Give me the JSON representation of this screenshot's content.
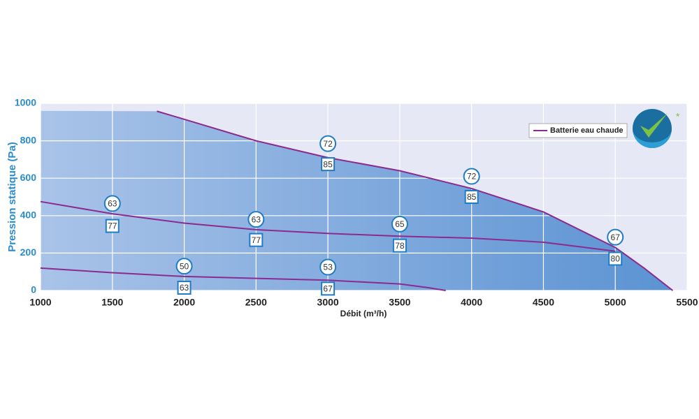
{
  "chart_data": {
    "type": "line",
    "xlabel": "Débit (m³/h)",
    "ylabel": "Pression statique (Pa)",
    "xlim": [
      1000,
      5500
    ],
    "ylim": [
      0,
      1000
    ],
    "xticks": [
      1000,
      1500,
      2000,
      2500,
      3000,
      3500,
      4000,
      4500,
      5000,
      5500
    ],
    "yticks": [
      0,
      200,
      400,
      600,
      800,
      1000
    ],
    "grid": true,
    "legend": "upper right",
    "area": {
      "color": "#5b93d3",
      "x": [
        1000,
        1810,
        2000,
        2500,
        3000,
        3500,
        4000,
        4500,
        5000,
        5200,
        5400
      ],
      "values": [
        960,
        958,
        915,
        800,
        710,
        640,
        545,
        420,
        230,
        120,
        0
      ]
    },
    "series": [
      {
        "name": "Batterie eau chaude",
        "color": "#8b2a8f",
        "curves": [
          {
            "x": [
              1810,
              2000,
              2500,
              3000,
              3500,
              4000,
              4500,
              5000,
              5200,
              5400
            ],
            "values": [
              958,
              915,
              800,
              710,
              640,
              545,
              420,
              230,
              120,
              0
            ]
          },
          {
            "x": [
              1000,
              1500,
              2000,
              2500,
              3000,
              3500,
              4000,
              4500,
              5000
            ],
            "values": [
              475,
              410,
              360,
              325,
              305,
              290,
              280,
              258,
              210
            ]
          },
          {
            "x": [
              1000,
              1500,
              2000,
              2500,
              3000,
              3500,
              3700,
              3820
            ],
            "values": [
              120,
              95,
              75,
              65,
              55,
              35,
              15,
              0
            ]
          }
        ]
      }
    ],
    "markers": [
      {
        "shape": "circle",
        "x": 1500,
        "y": 465,
        "label": 63
      },
      {
        "shape": "square",
        "x": 1500,
        "y": 345,
        "label": 77
      },
      {
        "shape": "circle",
        "x": 2500,
        "y": 380,
        "label": 63
      },
      {
        "shape": "square",
        "x": 2500,
        "y": 270,
        "label": 77
      },
      {
        "shape": "circle",
        "x": 3000,
        "y": 785,
        "label": 72
      },
      {
        "shape": "square",
        "x": 3000,
        "y": 675,
        "label": 85
      },
      {
        "shape": "circle",
        "x": 4000,
        "y": 610,
        "label": 72
      },
      {
        "shape": "square",
        "x": 4000,
        "y": 500,
        "label": 85
      },
      {
        "shape": "circle",
        "x": 3500,
        "y": 355,
        "label": 65
      },
      {
        "shape": "square",
        "x": 3500,
        "y": 240,
        "label": 78
      },
      {
        "shape": "circle",
        "x": 5000,
        "y": 285,
        "label": 67
      },
      {
        "shape": "square",
        "x": 5000,
        "y": 170,
        "label": 80
      },
      {
        "shape": "circle",
        "x": 2000,
        "y": 130,
        "label": 50
      },
      {
        "shape": "square",
        "x": 2000,
        "y": 15,
        "label": 63
      },
      {
        "shape": "circle",
        "x": 3000,
        "y": 125,
        "label": 53
      },
      {
        "shape": "square",
        "x": 3000,
        "y": 10,
        "label": 67
      }
    ]
  }
}
